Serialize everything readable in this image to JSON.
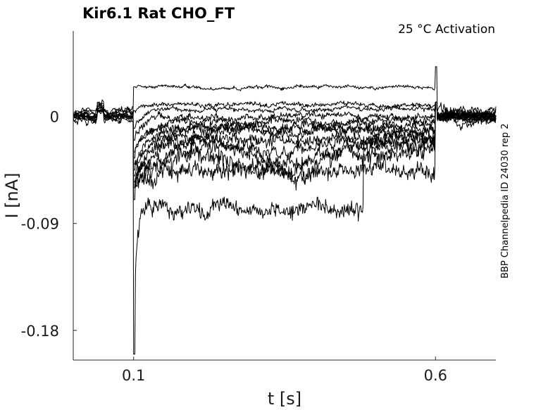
{
  "chart_data": {
    "type": "line",
    "title": "Kir6.1  Rat  CHO_FT",
    "annotation": "25 °C  Activation",
    "side_label": "BBP Channelpedia ID 24030 rep 2",
    "xlabel": "t [s]",
    "ylabel": "I [nA]",
    "xlim": [
      0.0,
      0.7
    ],
    "ylim": [
      -0.205,
      0.072
    ],
    "x_ticks": [
      0.1,
      0.6
    ],
    "x_tick_labels": [
      "0.1",
      "0.6"
    ],
    "y_ticks": [
      0.0,
      -0.09,
      -0.18
    ],
    "y_tick_labels": [
      "0",
      "-0.09",
      "-0.18"
    ],
    "grid": false,
    "stimulus": {
      "step_on": 0.1,
      "step_off": 0.6,
      "prepulse_start": 0.04,
      "prepulse_end": 0.05
    },
    "series": [
      {
        "pre": 0.004,
        "steady": 0.025,
        "late_mod": 0.0,
        "peak": 0.025,
        "tau": 0.01,
        "noise": 0.0015,
        "tail": 0.002
      },
      {
        "pre": 0.0,
        "steady": 0.01,
        "late_mod": 0.0,
        "peak": 0.005,
        "tau": 0.01,
        "noise": 0.002,
        "tail": 0.0
      },
      {
        "pre": 0.0,
        "steady": 0.006,
        "late_mod": 0.0,
        "peak": -0.01,
        "tau": 0.015,
        "noise": 0.002,
        "tail": 0.0
      },
      {
        "pre": 0.0,
        "steady": 0.0,
        "late_mod": 0.0,
        "peak": -0.02,
        "tau": 0.015,
        "noise": 0.003,
        "tail": 0.0
      },
      {
        "pre": 0.0,
        "steady": -0.004,
        "late_mod": 0.0,
        "peak": -0.03,
        "tau": 0.02,
        "noise": 0.003,
        "tail": 0.0
      },
      {
        "pre": 0.0,
        "steady": -0.008,
        "late_mod": 0.0,
        "peak": -0.035,
        "tau": 0.02,
        "noise": 0.004,
        "tail": 0.0
      },
      {
        "pre": 0.0,
        "steady": -0.01,
        "late_mod": 0.0,
        "peak": -0.04,
        "tau": 0.025,
        "noise": 0.004,
        "tail": 0.0
      },
      {
        "pre": 0.0,
        "steady": -0.013,
        "late_mod": 0.0,
        "peak": -0.045,
        "tau": 0.025,
        "noise": 0.004,
        "tail": 0.0
      },
      {
        "pre": 0.0,
        "steady": -0.016,
        "late_mod": -0.008,
        "peak": -0.05,
        "tau": 0.03,
        "noise": 0.005,
        "tail": 0.0
      },
      {
        "pre": 0.0,
        "steady": -0.02,
        "late_mod": -0.01,
        "peak": -0.055,
        "tau": 0.03,
        "noise": 0.005,
        "tail": 0.0
      },
      {
        "pre": 0.0,
        "steady": -0.025,
        "late_mod": -0.015,
        "peak": -0.06,
        "tau": 0.03,
        "noise": 0.006,
        "tail": 0.0
      },
      {
        "pre": 0.0,
        "steady": -0.03,
        "late_mod": -0.02,
        "peak": -0.07,
        "tau": 0.04,
        "noise": 0.007,
        "tail": 0.0
      },
      {
        "pre": 0.0,
        "steady": -0.045,
        "late_mod": 0.0,
        "peak": -0.06,
        "tau": 0.02,
        "noise": 0.007,
        "tail": 0.0
      },
      {
        "pre": 0.0,
        "steady": -0.078,
        "late_mod": 0.0,
        "peak": -0.2,
        "tau": 0.004,
        "noise": 0.007,
        "tail": 0.0,
        "ends_at": 0.48,
        "end_level": -0.02
      }
    ]
  }
}
